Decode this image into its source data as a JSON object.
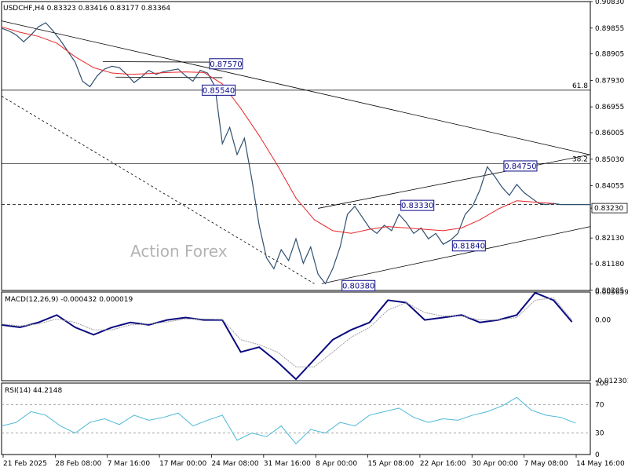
{
  "header": {
    "symbol": "USDCHF,H4",
    "ohlc": "0.83323 0.83416 0.83177 0.83364"
  },
  "watermark": "Action Forex",
  "colors": {
    "price": "#2f4f6f",
    "ma": "#e8262b",
    "macd": "#0a0a80",
    "signal": "#a0a0a0",
    "rsi": "#4bb8d6",
    "label_border": "#0b0b8a"
  },
  "chart_data": [
    {
      "type": "line",
      "panel": "price",
      "title": "USDCHF,H4 0.83323 0.83416 0.83177 0.83364",
      "ylim": [
        0.802,
        0.9083
      ],
      "y_ticks": [
        "0.90830",
        "0.89855",
        "0.88905",
        "0.87930",
        "0.86955",
        "0.86005",
        "0.85030",
        "0.84055",
        "0.83230",
        "0.82130",
        "0.81180",
        "0.80205"
      ],
      "current_price": "0.83230",
      "x_ticks": [
        "21 Feb 2025",
        "28 Feb 08:00",
        "7 Mar 16:00",
        "17 Mar 00:00",
        "24 Mar 08:00",
        "31 Mar 16:00",
        "8 Apr 00:00",
        "15 Apr 08:00",
        "22 Apr 16:00",
        "30 Apr 00:00",
        "7 May 08:00",
        "14 May 16:00"
      ],
      "series": [
        {
          "name": "",
          "x": [
            0,
            4,
            8,
            12,
            16,
            20,
            24,
            28,
            32,
            36,
            40,
            44,
            48,
            52,
            56,
            60,
            64,
            68,
            72,
            76,
            80,
            84,
            88,
            92,
            96,
            100,
            104,
            108,
            112,
            116,
            120,
            124,
            128,
            132,
            136,
            140,
            144,
            148,
            152,
            156,
            160,
            164,
            168,
            172,
            176,
            180,
            184,
            188,
            192,
            196,
            200,
            204,
            208,
            212,
            216,
            220,
            224,
            228,
            232,
            236,
            240,
            244,
            248,
            252,
            256,
            260,
            264,
            268,
            272,
            276,
            280,
            284,
            288,
            292,
            296,
            300,
            304,
            308,
            312,
            316,
            320
          ],
          "values": [
            0.8985,
            0.8975,
            0.896,
            0.8935,
            0.896,
            0.899,
            0.9005,
            0.8975,
            0.894,
            0.89,
            0.886,
            0.879,
            0.877,
            0.881,
            0.8835,
            0.8845,
            0.884,
            0.8815,
            0.8785,
            0.8805,
            0.883,
            0.8815,
            0.8825,
            0.883,
            0.8835,
            0.881,
            0.879,
            0.883,
            0.882,
            0.877,
            0.856,
            0.862,
            0.852,
            0.858,
            0.843,
            0.826,
            0.814,
            0.81,
            0.817,
            0.813,
            0.821,
            0.812,
            0.818,
            0.808,
            0.8045,
            0.81,
            0.818,
            0.83,
            0.833,
            0.829,
            0.825,
            0.823,
            0.826,
            0.824,
            0.83,
            0.827,
            0.823,
            0.825,
            0.821,
            0.823,
            0.819,
            0.8205,
            0.823,
            0.83,
            0.833,
            0.839,
            0.8475,
            0.844,
            0.84,
            0.837,
            0.841,
            0.838,
            0.836,
            0.834,
            0.8336,
            0.834,
            0.8336,
            0.8336,
            0.8336,
            0.8336,
            0.8336
          ]
        },
        {
          "name": "",
          "x": [
            0,
            10,
            20,
            30,
            40,
            50,
            60,
            70,
            80,
            90,
            100,
            110,
            120,
            130,
            140,
            150,
            160,
            170,
            180,
            190,
            200,
            210,
            220,
            230,
            240,
            250,
            260,
            270,
            280,
            290,
            300
          ],
          "values": [
            0.899,
            0.897,
            0.8955,
            0.893,
            0.888,
            0.884,
            0.882,
            0.8815,
            0.8818,
            0.8822,
            0.8824,
            0.8822,
            0.878,
            0.869,
            0.859,
            0.848,
            0.836,
            0.828,
            0.824,
            0.823,
            0.8245,
            0.8255,
            0.825,
            0.8245,
            0.824,
            0.825,
            0.828,
            0.832,
            0.835,
            0.8345,
            0.834
          ]
        }
      ],
      "annotations": [
        "0.85540",
        "0.87570",
        "0.84750",
        "0.83330",
        "0.81840",
        "0.80380",
        "61.8",
        "38.2"
      ]
    },
    {
      "type": "line",
      "panel": "macd",
      "title": "MACD(12,26,9) -0.000432 0.000019",
      "ylim": [
        -0.012301,
        0.005659
      ],
      "y_ticks": [
        "0.005659",
        "0.00",
        "-0.012301"
      ],
      "series": [
        {
          "name": "",
          "x": [
            0,
            10,
            20,
            30,
            40,
            50,
            60,
            70,
            80,
            90,
            100,
            110,
            120,
            130,
            140,
            150,
            160,
            170,
            180,
            190,
            200,
            210,
            220,
            230,
            240,
            250,
            260,
            270,
            280,
            290,
            300,
            310
          ],
          "values": [
            -0.001,
            -0.0015,
            -0.0005,
            0.001,
            -0.0015,
            -0.003,
            -0.0015,
            -0.0005,
            -0.001,
            0.0,
            0.0005,
            0.0,
            0.0,
            -0.0065,
            -0.0055,
            -0.0085,
            -0.012,
            -0.008,
            -0.004,
            -0.002,
            -0.0005,
            0.004,
            0.0035,
            0.0,
            0.0005,
            0.001,
            -0.0005,
            0.0,
            0.001,
            0.0055,
            0.004,
            -0.0004
          ]
        },
        {
          "name": "",
          "x": [
            0,
            10,
            20,
            30,
            40,
            50,
            60,
            70,
            80,
            90,
            100,
            110,
            120,
            130,
            140,
            150,
            160,
            170,
            180,
            190,
            200,
            210,
            220,
            230,
            240,
            250,
            260,
            270,
            280,
            290,
            300,
            310
          ],
          "values": [
            -0.0008,
            -0.0012,
            -0.0008,
            0.0002,
            -0.0005,
            -0.002,
            -0.002,
            -0.001,
            -0.0008,
            -0.0004,
            0.0002,
            0.0002,
            0.0001,
            -0.004,
            -0.005,
            -0.0065,
            -0.0095,
            -0.0095,
            -0.0065,
            -0.0035,
            -0.0015,
            0.002,
            0.0035,
            0.0015,
            0.0008,
            0.0008,
            0.0,
            0.0,
            0.0005,
            0.004,
            0.0045,
            0.0
          ]
        }
      ]
    },
    {
      "type": "line",
      "panel": "rsi",
      "title": "RSI(14) 44.2148",
      "ylim": [
        0,
        100
      ],
      "y_ticks": [
        "100",
        "70",
        "30",
        "0"
      ],
      "levels": [
        70,
        30
      ],
      "series": [
        {
          "name": "",
          "x": [
            0,
            8,
            16,
            24,
            32,
            40,
            48,
            56,
            64,
            72,
            80,
            88,
            96,
            104,
            112,
            120,
            128,
            136,
            144,
            152,
            160,
            168,
            176,
            184,
            192,
            200,
            208,
            216,
            224,
            232,
            240,
            248,
            256,
            264,
            272,
            280,
            288,
            296,
            304,
            312
          ],
          "values": [
            40,
            45,
            60,
            55,
            40,
            30,
            45,
            50,
            42,
            55,
            48,
            52,
            58,
            40,
            48,
            55,
            20,
            30,
            25,
            40,
            15,
            35,
            30,
            45,
            40,
            55,
            60,
            65,
            52,
            45,
            50,
            48,
            55,
            60,
            68,
            80,
            62,
            55,
            52,
            44
          ]
        }
      ]
    }
  ]
}
